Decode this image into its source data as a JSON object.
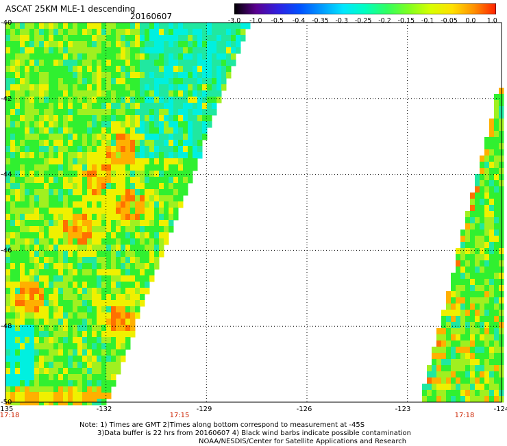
{
  "header": {
    "title": "ASCAT 25KM MLE-1 descending",
    "date": "20160607"
  },
  "colorbar": {
    "labels": [
      "-3.0",
      "-1.0",
      "-0.5",
      "-0.4",
      "-0.35",
      "-0.3",
      "-0.25",
      "-0.2",
      "-0.15",
      "-0.1",
      "-0.05",
      "0.0",
      "1.0"
    ],
    "colors": [
      "#000000",
      "#5a0090",
      "#3020e0",
      "#0050ff",
      "#0099ff",
      "#00e6ff",
      "#00ffc0",
      "#30ff60",
      "#80ff20",
      "#d8ff00",
      "#ffe000",
      "#ff9000",
      "#ff2000"
    ]
  },
  "map": {
    "lon_range": [
      -135,
      -124
    ],
    "lat_range": [
      -50,
      -40
    ],
    "lon_ticks": [
      "-135",
      "-132",
      "-129",
      "-126",
      "-123",
      "-124"
    ],
    "lat_ticks": [
      "-40",
      "-42",
      "-44",
      "-46",
      "-48",
      "-50"
    ],
    "time_labels": [
      "17:18",
      "17:15",
      "17:18"
    ],
    "time_color": "#cc2200",
    "west_swath_description": "satellite swath west of diagonal edge",
    "colors": {
      "cyan": "#00f0e0",
      "teal": "#20e8a0",
      "green": "#30f030",
      "lime": "#a0f020",
      "yellow": "#f0f000",
      "orange": "#ffb000",
      "deep_orange": "#ff7000"
    }
  },
  "chart_data": {
    "type": "heatmap",
    "title": "ASCAT 25KM MLE-1 descending",
    "subtitle": "20160607",
    "xlabel": "",
    "ylabel": "",
    "xlim": [
      -135,
      -124
    ],
    "ylim": [
      -50,
      -40
    ],
    "x_ticks": [
      "-135",
      "-132",
      "-129",
      "-126",
      "-123",
      "-124"
    ],
    "y_ticks": [
      "-40",
      "-42",
      "-44",
      "-46",
      "-48",
      "-50"
    ],
    "grid": true,
    "colorbar_labels": [
      "-3.0",
      "-1.0",
      "-0.5",
      "-0.4",
      "-0.35",
      "-0.3",
      "-0.25",
      "-0.2",
      "-0.15",
      "-0.1",
      "-0.05",
      "0.0",
      "1.0"
    ]
  },
  "notes": {
    "line1": "Note: 1) Times are GMT 2)Times along bottom correspond to measurement at -45S",
    "line2": "3)Data buffer is 22 hrs from 20160607 4) Black wind barbs indicate possible contamination",
    "line3": "NOAA/NESDIS/Center for Satellite Applications and Research"
  }
}
